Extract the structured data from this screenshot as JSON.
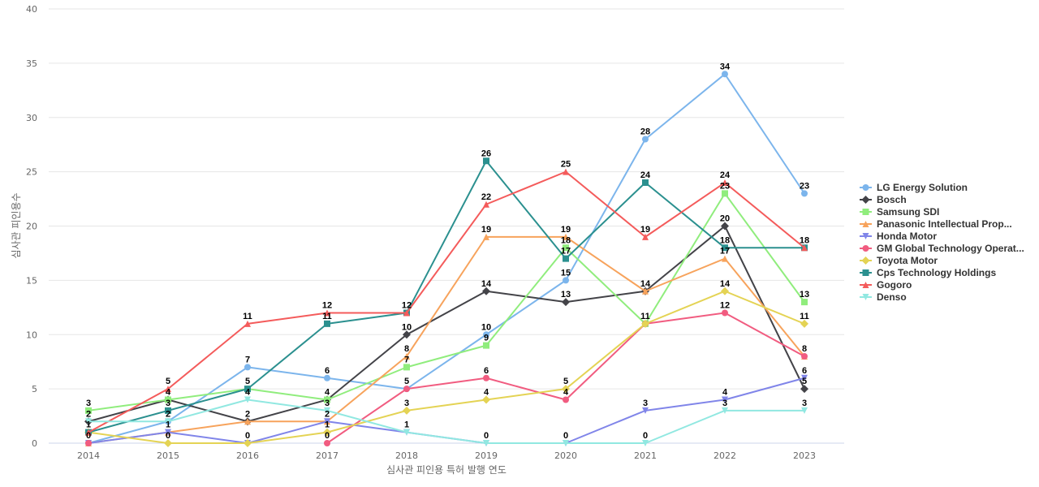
{
  "chart_data": {
    "type": "line",
    "title": "",
    "xlabel": "심사관 피인용 특허 발행 연도",
    "ylabel": "심사관 피인용수",
    "ylim": [
      0,
      40
    ],
    "yticks": [
      0,
      5,
      10,
      15,
      20,
      25,
      30,
      35,
      40
    ],
    "x": [
      "2014",
      "2015",
      "2016",
      "2017",
      "2018",
      "2019",
      "2020",
      "2021",
      "2022",
      "2023"
    ],
    "legend_position": "right",
    "grid": true,
    "series": [
      {
        "name": "LG Energy Solution",
        "color": "#7cb5ec",
        "marker": "circle",
        "values": [
          0,
          2,
          7,
          6,
          5,
          10,
          15,
          28,
          34,
          23
        ]
      },
      {
        "name": "Bosch",
        "color": "#434348",
        "marker": "diamond",
        "values": [
          2,
          4,
          2,
          4,
          10,
          14,
          13,
          14,
          20,
          5
        ]
      },
      {
        "name": "Samsung SDI",
        "color": "#90ed7d",
        "marker": "square",
        "values": [
          3,
          4,
          5,
          4,
          7,
          9,
          18,
          11,
          23,
          13
        ]
      },
      {
        "name": "Panasonic Intellectual Prop...",
        "color": "#f7a35c",
        "marker": "triangle",
        "values": [
          0,
          1,
          2,
          2,
          8,
          19,
          19,
          14,
          17,
          8
        ]
      },
      {
        "name": "Honda Motor",
        "color": "#8085e9",
        "marker": "triangle-down",
        "values": [
          0,
          1,
          0,
          2,
          1,
          0,
          0,
          3,
          4,
          6
        ]
      },
      {
        "name": "GM Global Technology Operat...",
        "color": "#f15c80",
        "marker": "circle",
        "values": [
          0,
          null,
          null,
          0,
          5,
          6,
          4,
          11,
          12,
          8
        ]
      },
      {
        "name": "Toyota Motor",
        "color": "#e4d354",
        "marker": "diamond",
        "values": [
          1,
          0,
          0,
          1,
          3,
          4,
          5,
          11,
          14,
          11
        ]
      },
      {
        "name": "Cps Technology Holdings",
        "color": "#2b908f",
        "marker": "square",
        "values": [
          1,
          3,
          5,
          11,
          12,
          26,
          17,
          24,
          18,
          18
        ]
      },
      {
        "name": "Gogoro",
        "color": "#f45b5b",
        "marker": "triangle",
        "values": [
          1,
          5,
          11,
          12,
          12,
          22,
          25,
          19,
          24,
          18
        ]
      },
      {
        "name": "Denso",
        "color": "#91e8e1",
        "marker": "triangle-down",
        "values": [
          2,
          2,
          4,
          3,
          1,
          0,
          0,
          0,
          3,
          3
        ]
      }
    ],
    "data_labels": [
      {
        "x": "2014",
        "value": 3,
        "text": "3"
      },
      {
        "x": "2014",
        "value": 2,
        "text": "2"
      },
      {
        "x": "2014",
        "value": 1,
        "text": "1"
      },
      {
        "x": "2014",
        "value": 0,
        "text": "0"
      },
      {
        "x": "2015",
        "value": 5,
        "text": "5"
      },
      {
        "x": "2015",
        "value": 4,
        "text": "4"
      },
      {
        "x": "2015",
        "value": 3,
        "text": "3"
      },
      {
        "x": "2015",
        "value": 2,
        "text": "2"
      },
      {
        "x": "2015",
        "value": 1,
        "text": "1"
      },
      {
        "x": "2015",
        "value": 0,
        "text": "0"
      },
      {
        "x": "2016",
        "value": 11,
        "text": "11"
      },
      {
        "x": "2016",
        "value": 7,
        "text": "7"
      },
      {
        "x": "2016",
        "value": 5,
        "text": "5"
      },
      {
        "x": "2016",
        "value": 4,
        "text": "4"
      },
      {
        "x": "2016",
        "value": 2,
        "text": "2"
      },
      {
        "x": "2016",
        "value": 0,
        "text": "0"
      },
      {
        "x": "2017",
        "value": 12,
        "text": "12"
      },
      {
        "x": "2017",
        "value": 11,
        "text": "11"
      },
      {
        "x": "2017",
        "value": 6,
        "text": "6"
      },
      {
        "x": "2017",
        "value": 4,
        "text": "4"
      },
      {
        "x": "2017",
        "value": 3,
        "text": "3"
      },
      {
        "x": "2017",
        "value": 2,
        "text": "2"
      },
      {
        "x": "2017",
        "value": 1,
        "text": "1"
      },
      {
        "x": "2017",
        "value": 0,
        "text": "0"
      },
      {
        "x": "2018",
        "value": 12,
        "text": "12"
      },
      {
        "x": "2018",
        "value": 10,
        "text": "10"
      },
      {
        "x": "2018",
        "value": 8,
        "text": "8"
      },
      {
        "x": "2018",
        "value": 7,
        "text": "7"
      },
      {
        "x": "2018",
        "value": 5,
        "text": "5"
      },
      {
        "x": "2018",
        "value": 3,
        "text": "3"
      },
      {
        "x": "2018",
        "value": 1,
        "text": "1"
      },
      {
        "x": "2019",
        "value": 26,
        "text": "26"
      },
      {
        "x": "2019",
        "value": 22,
        "text": "22"
      },
      {
        "x": "2019",
        "value": 19,
        "text": "19"
      },
      {
        "x": "2019",
        "value": 14,
        "text": "14"
      },
      {
        "x": "2019",
        "value": 10,
        "text": "10"
      },
      {
        "x": "2019",
        "value": 9,
        "text": "9"
      },
      {
        "x": "2019",
        "value": 6,
        "text": "6"
      },
      {
        "x": "2019",
        "value": 4,
        "text": "4"
      },
      {
        "x": "2019",
        "value": 0,
        "text": "0"
      },
      {
        "x": "2020",
        "value": 25,
        "text": "25"
      },
      {
        "x": "2020",
        "value": 19,
        "text": "19"
      },
      {
        "x": "2020",
        "value": 18,
        "text": "18"
      },
      {
        "x": "2020",
        "value": 17,
        "text": "17"
      },
      {
        "x": "2020",
        "value": 15,
        "text": "15"
      },
      {
        "x": "2020",
        "value": 13,
        "text": "13"
      },
      {
        "x": "2020",
        "value": 5,
        "text": "5"
      },
      {
        "x": "2020",
        "value": 4,
        "text": "4"
      },
      {
        "x": "2020",
        "value": 0,
        "text": "0"
      },
      {
        "x": "2021",
        "value": 28,
        "text": "28"
      },
      {
        "x": "2021",
        "value": 24,
        "text": "24"
      },
      {
        "x": "2021",
        "value": 19,
        "text": "19"
      },
      {
        "x": "2021",
        "value": 14,
        "text": "14"
      },
      {
        "x": "2021",
        "value": 11,
        "text": "11"
      },
      {
        "x": "2021",
        "value": 3,
        "text": "3"
      },
      {
        "x": "2021",
        "value": 0,
        "text": "0"
      },
      {
        "x": "2022",
        "value": 34,
        "text": "34"
      },
      {
        "x": "2022",
        "value": 24,
        "text": "24"
      },
      {
        "x": "2022",
        "value": 23,
        "text": "23"
      },
      {
        "x": "2022",
        "value": 20,
        "text": "20"
      },
      {
        "x": "2022",
        "value": 18,
        "text": "18"
      },
      {
        "x": "2022",
        "value": 17,
        "text": "17"
      },
      {
        "x": "2022",
        "value": 14,
        "text": "14"
      },
      {
        "x": "2022",
        "value": 12,
        "text": "12"
      },
      {
        "x": "2022",
        "value": 4,
        "text": "4"
      },
      {
        "x": "2022",
        "value": 3,
        "text": "3"
      },
      {
        "x": "2023",
        "value": 23,
        "text": "23"
      },
      {
        "x": "2023",
        "value": 18,
        "text": "18"
      },
      {
        "x": "2023",
        "value": 13,
        "text": "13"
      },
      {
        "x": "2023",
        "value": 11,
        "text": "11"
      },
      {
        "x": "2023",
        "value": 8,
        "text": "8"
      },
      {
        "x": "2023",
        "value": 6,
        "text": "6"
      },
      {
        "x": "2023",
        "value": 5,
        "text": "5"
      },
      {
        "x": "2023",
        "value": 3,
        "text": "3"
      }
    ]
  }
}
